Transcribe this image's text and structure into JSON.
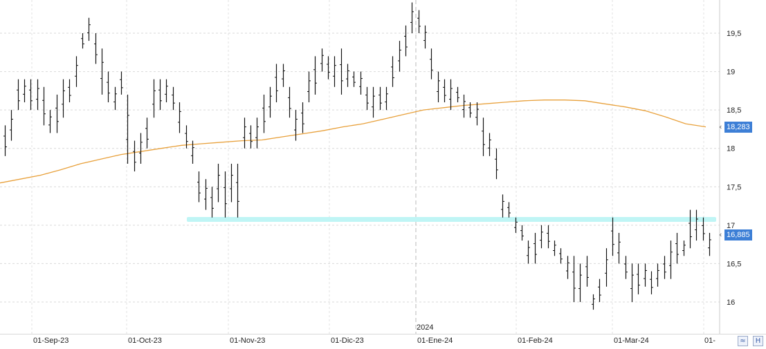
{
  "chart_data": {
    "type": "ohlc",
    "title": "",
    "y_axis_side": "right",
    "ylim": [
      15.6,
      19.9
    ],
    "y_ticks": [
      "16",
      "16,5",
      "17",
      "17,5",
      "18",
      "18,5",
      "19",
      "19,5"
    ],
    "x_ticks": [
      "01-Sep-23",
      "01-Oct-23",
      "01-Nov-23",
      "01-Dic-23",
      "01-Ene-24",
      "01-Feb-24",
      "01-Mar-24",
      "01-"
    ],
    "year_marker": "2024",
    "grid": true,
    "price_series": [
      [
        17.9,
        18.3
      ],
      [
        18.1,
        18.5
      ],
      [
        18.5,
        18.9
      ],
      [
        18.6,
        18.9
      ],
      [
        18.5,
        18.9
      ],
      [
        18.5,
        18.9
      ],
      [
        18.3,
        18.8
      ],
      [
        18.2,
        18.5
      ],
      [
        18.2,
        18.7
      ],
      [
        18.4,
        18.9
      ],
      [
        18.6,
        18.9
      ],
      [
        18.8,
        19.2
      ],
      [
        19.3,
        19.5
      ],
      [
        19.4,
        19.7
      ],
      [
        19.1,
        19.5
      ],
      [
        18.7,
        19.3
      ],
      [
        18.6,
        19.0
      ],
      [
        18.5,
        18.8
      ],
      [
        18.7,
        19.0
      ],
      [
        17.8,
        18.7
      ],
      [
        17.7,
        18.1
      ],
      [
        17.8,
        18.2
      ],
      [
        18.0,
        18.4
      ],
      [
        18.4,
        18.9
      ],
      [
        18.5,
        18.9
      ],
      [
        18.6,
        18.9
      ],
      [
        18.5,
        18.8
      ],
      [
        18.2,
        18.6
      ],
      [
        18.0,
        18.3
      ],
      [
        17.8,
        18.1
      ],
      [
        17.3,
        17.7
      ],
      [
        17.2,
        17.6
      ],
      [
        17.1,
        17.5
      ],
      [
        17.3,
        17.8
      ],
      [
        17.1,
        17.7
      ],
      [
        17.3,
        17.8
      ],
      [
        17.1,
        17.8
      ],
      [
        18.0,
        18.4
      ],
      [
        18.0,
        18.3
      ],
      [
        18.0,
        18.4
      ],
      [
        18.2,
        18.7
      ],
      [
        18.4,
        18.8
      ],
      [
        18.6,
        19.1
      ],
      [
        18.8,
        19.1
      ],
      [
        18.4,
        18.8
      ],
      [
        18.1,
        18.5
      ],
      [
        18.2,
        18.6
      ],
      [
        18.6,
        19.0
      ],
      [
        18.7,
        19.2
      ],
      [
        19.0,
        19.3
      ],
      [
        18.9,
        19.2
      ],
      [
        18.8,
        19.2
      ],
      [
        18.7,
        19.3
      ],
      [
        18.8,
        19.1
      ],
      [
        18.8,
        19.0
      ],
      [
        18.7,
        19.0
      ],
      [
        18.5,
        18.8
      ],
      [
        18.4,
        18.8
      ],
      [
        18.5,
        18.8
      ],
      [
        18.5,
        18.8
      ],
      [
        18.8,
        19.2
      ],
      [
        19.0,
        19.4
      ],
      [
        19.2,
        19.6
      ],
      [
        19.5,
        19.9
      ],
      [
        19.5,
        19.8
      ],
      [
        19.3,
        19.6
      ],
      [
        18.9,
        19.3
      ],
      [
        18.6,
        19.0
      ],
      [
        18.6,
        18.9
      ],
      [
        18.5,
        18.9
      ],
      [
        18.6,
        18.8
      ],
      [
        18.4,
        18.7
      ],
      [
        18.4,
        18.6
      ],
      [
        18.3,
        18.6
      ],
      [
        17.9,
        18.4
      ],
      [
        17.9,
        18.2
      ],
      [
        17.6,
        18.0
      ],
      [
        17.1,
        17.4
      ],
      [
        17.1,
        17.3
      ],
      [
        16.9,
        17.1
      ],
      [
        16.8,
        17.0
      ],
      [
        16.5,
        16.8
      ],
      [
        16.5,
        16.9
      ],
      [
        16.7,
        17.0
      ],
      [
        16.7,
        17.0
      ],
      [
        16.6,
        16.8
      ],
      [
        16.5,
        16.7
      ],
      [
        16.3,
        16.6
      ],
      [
        16.0,
        16.6
      ],
      [
        16.0,
        16.5
      ],
      [
        16.2,
        16.6
      ],
      [
        15.9,
        16.1
      ],
      [
        16.0,
        16.3
      ],
      [
        16.2,
        16.7
      ],
      [
        16.6,
        17.1
      ],
      [
        16.5,
        16.9
      ],
      [
        16.3,
        16.6
      ],
      [
        16.0,
        16.5
      ],
      [
        16.1,
        16.5
      ],
      [
        16.2,
        16.5
      ],
      [
        16.1,
        16.4
      ],
      [
        16.2,
        16.5
      ],
      [
        16.3,
        16.6
      ],
      [
        16.3,
        16.8
      ],
      [
        16.5,
        16.9
      ],
      [
        16.6,
        16.8
      ],
      [
        16.7,
        17.2
      ],
      [
        16.8,
        17.2
      ],
      [
        16.8,
        17.1
      ],
      [
        16.6,
        16.9
      ]
    ],
    "series": [
      {
        "name": "",
        "color": "#e8a03a",
        "values": [
          17.55,
          17.6,
          17.65,
          17.72,
          17.8,
          17.86,
          17.92,
          17.96,
          18.0,
          18.04,
          18.06,
          18.08,
          18.1,
          18.11,
          18.15,
          18.19,
          18.23,
          18.28,
          18.32,
          18.38,
          18.44,
          18.5,
          18.53,
          18.56,
          18.58,
          18.6,
          18.62,
          18.63,
          18.63,
          18.62,
          18.58,
          18.54,
          18.49,
          18.41,
          18.32,
          18.28
        ]
      }
    ],
    "support_zone": {
      "y": 17.08,
      "color": "#bff5f5",
      "x_start": "01-Nov-23"
    },
    "value_labels": [
      {
        "value": "18,283",
        "color": "#3d7fd6"
      },
      {
        "value": "16,885",
        "color": "#3d7fd6"
      }
    ]
  },
  "ui": {
    "chart_type_button": "≈",
    "save_button": "H"
  }
}
